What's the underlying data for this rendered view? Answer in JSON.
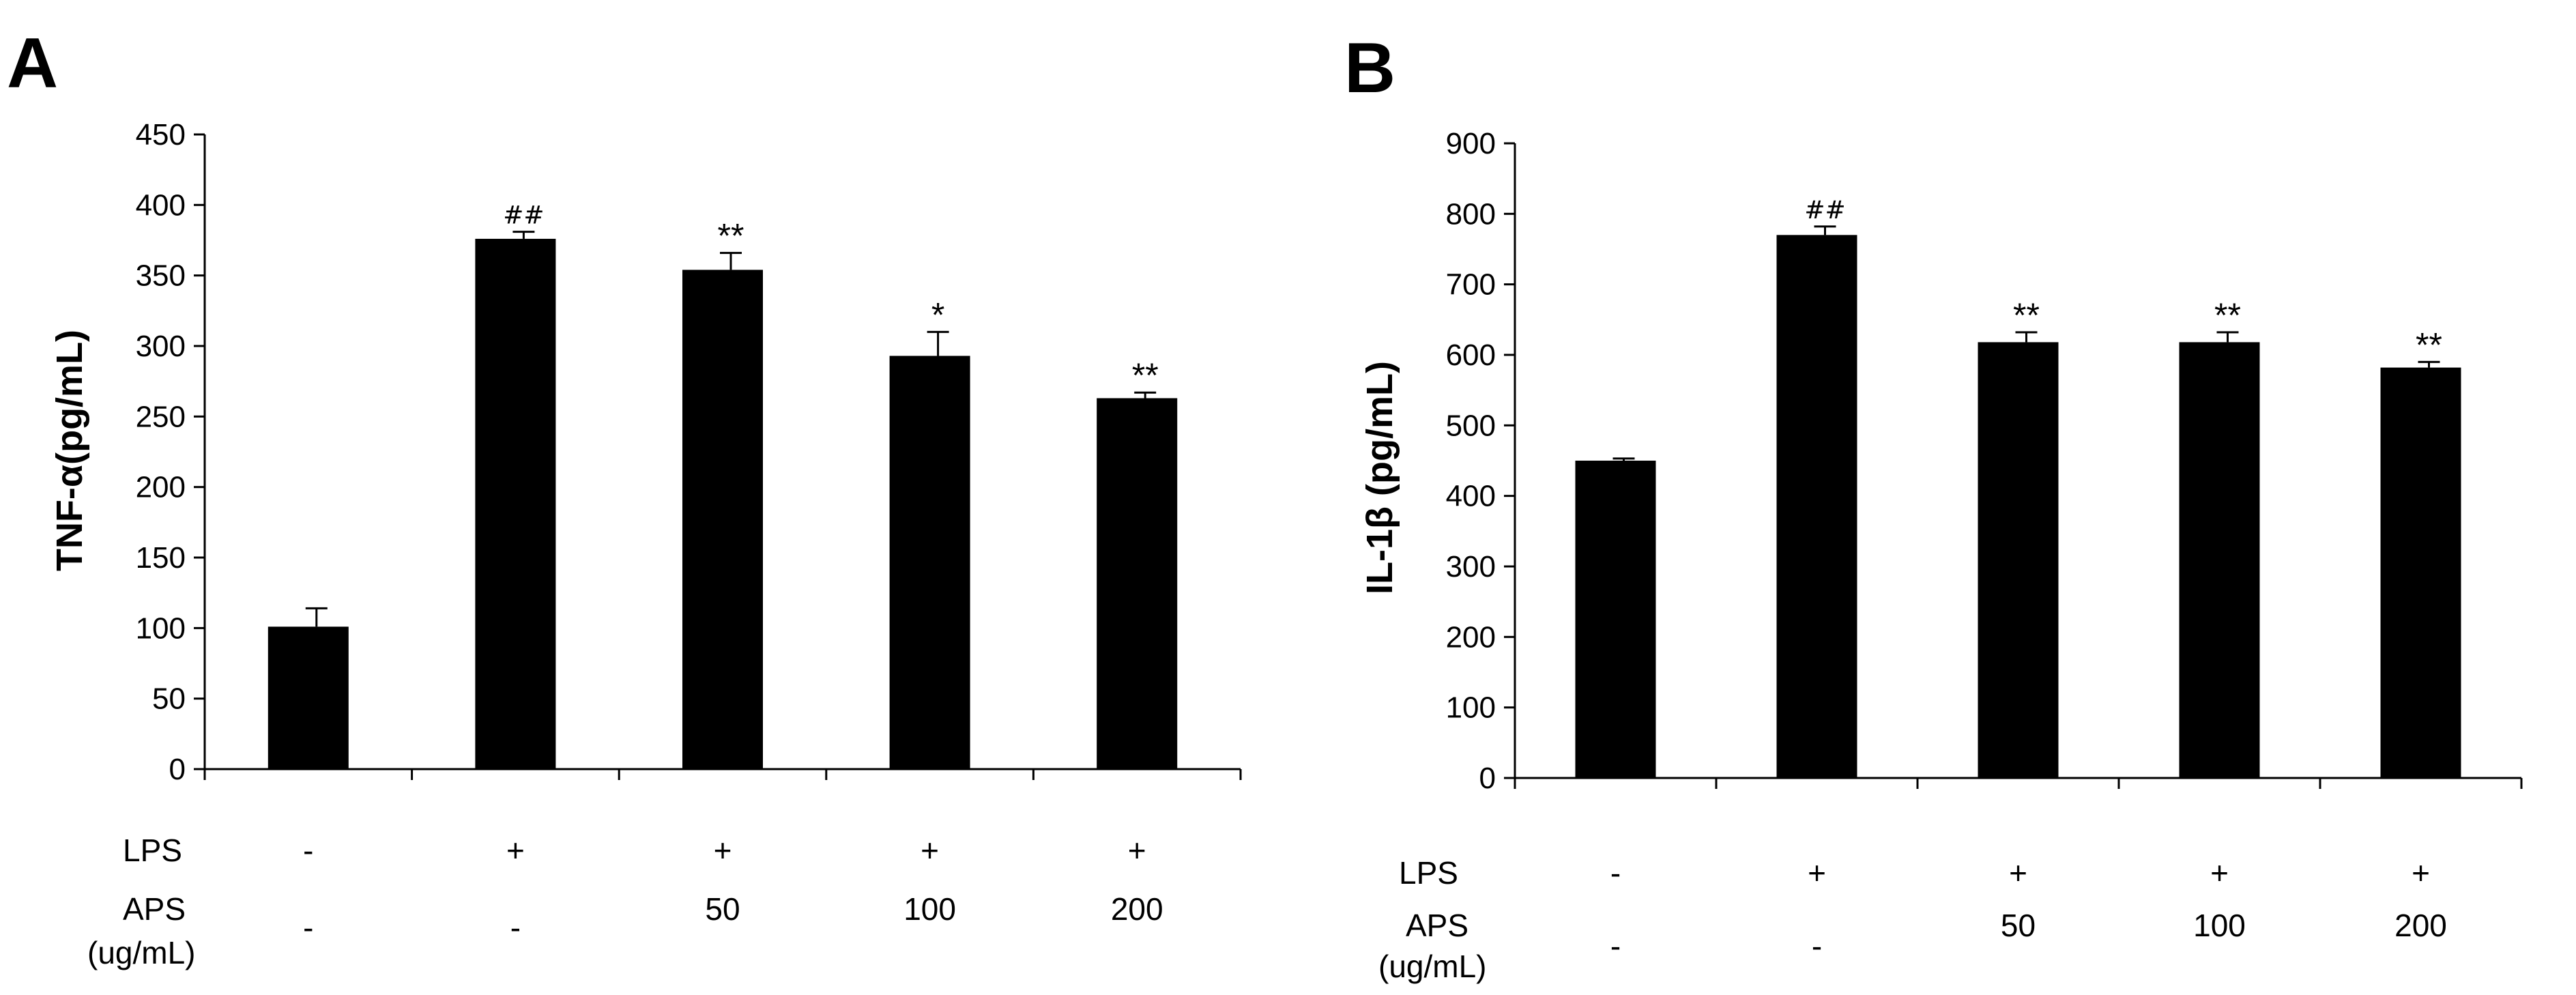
{
  "figure": {
    "panels": [
      "A",
      "B"
    ],
    "conditions": {
      "lps_label": "LPS",
      "aps_label_line1": "APS",
      "aps_label_line2": "(ug/mL)",
      "lps": [
        "-",
        "+",
        "+",
        "+",
        "+"
      ],
      "aps": [
        "-",
        "-",
        "50",
        "100",
        "200"
      ]
    }
  },
  "chart_data": [
    {
      "type": "bar",
      "panel": "A",
      "ylabel": "TNF-α(pg/mL)",
      "ylim": [
        0,
        450
      ],
      "yticks": [
        0,
        50,
        100,
        150,
        200,
        250,
        300,
        350,
        400,
        450
      ],
      "categories": [
        "-/-",
        "+/-",
        "+/50",
        "+/100",
        "+/200"
      ],
      "values": [
        101,
        376,
        354,
        293,
        263
      ],
      "errors": [
        13,
        5,
        12,
        17,
        4
      ],
      "annotations": [
        "",
        "##",
        "**",
        "*",
        "**"
      ],
      "colors": {
        "bar": "#000000"
      }
    },
    {
      "type": "bar",
      "panel": "B",
      "ylabel": "IL-1β (pg/mL)",
      "ylim": [
        0,
        900
      ],
      "yticks": [
        0,
        100,
        200,
        300,
        400,
        500,
        600,
        700,
        800,
        900
      ],
      "categories": [
        "-/-",
        "+/-",
        "+/50",
        "+/100",
        "+/200"
      ],
      "values": [
        450,
        770,
        618,
        618,
        582
      ],
      "errors": [
        3,
        12,
        14,
        14,
        8
      ],
      "annotations": [
        "",
        "##",
        "**",
        "**",
        "**"
      ],
      "colors": {
        "bar": "#000000"
      }
    }
  ]
}
